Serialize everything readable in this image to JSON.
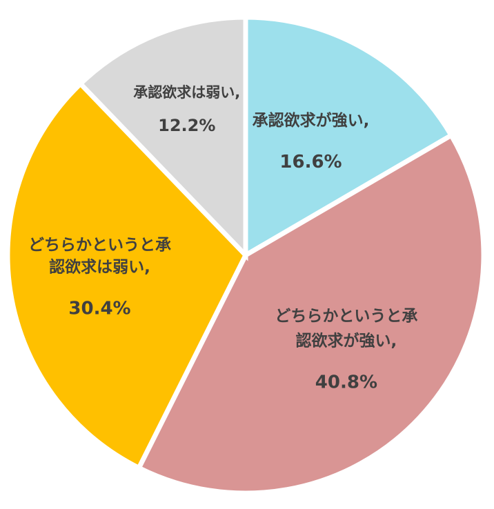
{
  "chart_data": {
    "type": "pie",
    "slices": [
      {
        "name": "承認欲求が強い,",
        "value": 16.6,
        "pct_label": "16.6%",
        "color": "#9de0ec",
        "label_lines": [
          "承認欲求が強い,"
        ]
      },
      {
        "name": "どちらかというと承認欲求が強い,",
        "value": 40.8,
        "pct_label": "40.8%",
        "color": "#d99594",
        "label_lines": [
          "どちらかというと承",
          "認欲求が強い,"
        ]
      },
      {
        "name": "どちらかというと承認欲求は弱い,",
        "value": 30.4,
        "pct_label": "30.4%",
        "color": "#ffc000",
        "label_lines": [
          "どちらかというと承",
          "認欲求は弱い,"
        ]
      },
      {
        "name": "承認欲求は弱い,",
        "value": 12.2,
        "pct_label": "12.2%",
        "color": "#d9d9d9",
        "label_lines": [
          "承認欲求は弱い,"
        ]
      }
    ],
    "start_angle_deg": 0,
    "direction": "clockwise",
    "legend": "none",
    "title": ""
  }
}
